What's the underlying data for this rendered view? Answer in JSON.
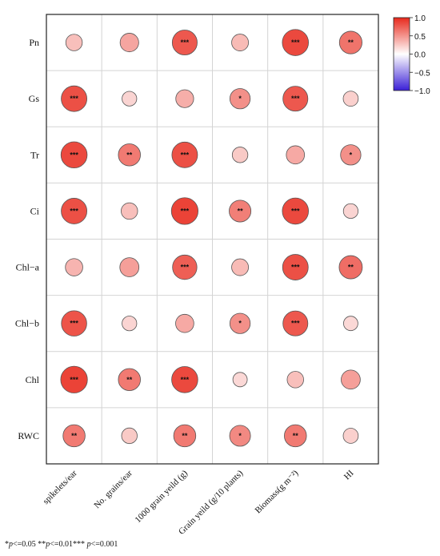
{
  "chart_data": {
    "type": "heatmap",
    "rows": [
      "Pn",
      "Gs",
      "Tr",
      "Ci",
      "Chl−a",
      "Chl−b",
      "Chl",
      "RWC"
    ],
    "columns": [
      "spikelets/ear",
      "No. grains/ear",
      "1000 grain yeild (g)",
      "Grain yeild (g/10 plants)",
      "Biomass(g m⁻²)",
      "HI"
    ],
    "values": [
      [
        0.3,
        0.42,
        0.78,
        0.32,
        0.85,
        0.65
      ],
      [
        0.82,
        0.2,
        0.38,
        0.52,
        0.78,
        0.22
      ],
      [
        0.85,
        0.62,
        0.82,
        0.25,
        0.4,
        0.52
      ],
      [
        0.82,
        0.3,
        0.88,
        0.6,
        0.85,
        0.2
      ],
      [
        0.35,
        0.45,
        0.75,
        0.32,
        0.82,
        0.68
      ],
      [
        0.8,
        0.2,
        0.4,
        0.52,
        0.78,
        0.18
      ],
      [
        0.88,
        0.62,
        0.85,
        0.18,
        0.3,
        0.45
      ],
      [
        0.62,
        0.25,
        0.62,
        0.55,
        0.62,
        0.22
      ]
    ],
    "significance": [
      [
        "",
        "",
        "***",
        "",
        "***",
        "**"
      ],
      [
        "***",
        "",
        "",
        "*",
        "***",
        ""
      ],
      [
        "***",
        "**",
        "***",
        "",
        "",
        "*"
      ],
      [
        "***",
        "",
        "***",
        "**",
        "***",
        ""
      ],
      [
        "",
        "",
        "***",
        "",
        "***",
        "**"
      ],
      [
        "***",
        "",
        "",
        "*",
        "***",
        ""
      ],
      [
        "***",
        "**",
        "***",
        "",
        "",
        ""
      ],
      [
        "**",
        "",
        "**",
        "*",
        "**",
        ""
      ]
    ],
    "colorbar": {
      "range": [
        -1.0,
        1.0
      ],
      "ticks": [
        "1.0",
        "0.5",
        "0.0",
        "−0.5",
        "−1.0"
      ],
      "low_color": "#3a1fd6",
      "mid_color": "#ffffff",
      "high_color": "#e8291c"
    },
    "footnote": {
      "parts": [
        "*",
        "p",
        "<=0.05 **",
        "p",
        "<=0.01*** ",
        "p",
        "<=0.001"
      ]
    }
  }
}
